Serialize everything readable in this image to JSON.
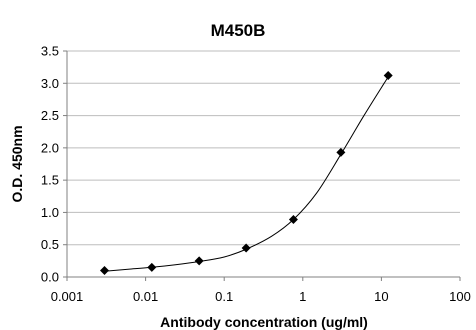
{
  "chart_data": {
    "type": "scatter",
    "title": "M450B",
    "xlabel": "Antibody concentration (ug/ml)",
    "ylabel": "O.D. 450nm",
    "x_scale": "log",
    "xlim": [
      0.001,
      100
    ],
    "ylim": [
      0,
      3.5
    ],
    "x_ticks": [
      0.001,
      0.01,
      0.1,
      1,
      10,
      100
    ],
    "x_tick_labels": [
      "0.001",
      "0.01",
      "0.1",
      "1",
      "10",
      "100"
    ],
    "y_ticks": [
      0,
      0.5,
      1,
      1.5,
      2,
      2.5,
      3,
      3.5
    ],
    "y_tick_labels": [
      "0.0",
      "0.5",
      "1.0",
      "1.5",
      "2.0",
      "2.5",
      "3.0",
      "3.5"
    ],
    "grid": "horizontal",
    "marker": "diamond",
    "colors": {
      "marker": "#000000",
      "curve": "#000000",
      "grid": "#bdbdbd",
      "axis": "#808080"
    },
    "series": [
      {
        "x": [
          0.003,
          0.012,
          0.048,
          0.19,
          0.76,
          3.05,
          12.2
        ],
        "y": [
          0.1,
          0.15,
          0.25,
          0.45,
          0.89,
          1.93,
          3.12
        ]
      }
    ],
    "fit_curve": {
      "x": [
        0.003,
        0.006,
        0.012,
        0.024,
        0.048,
        0.1,
        0.19,
        0.4,
        0.76,
        1.5,
        3.05,
        6,
        12.2
      ],
      "y": [
        0.09,
        0.12,
        0.15,
        0.19,
        0.24,
        0.31,
        0.43,
        0.63,
        0.89,
        1.3,
        1.9,
        2.5,
        3.1
      ]
    }
  }
}
